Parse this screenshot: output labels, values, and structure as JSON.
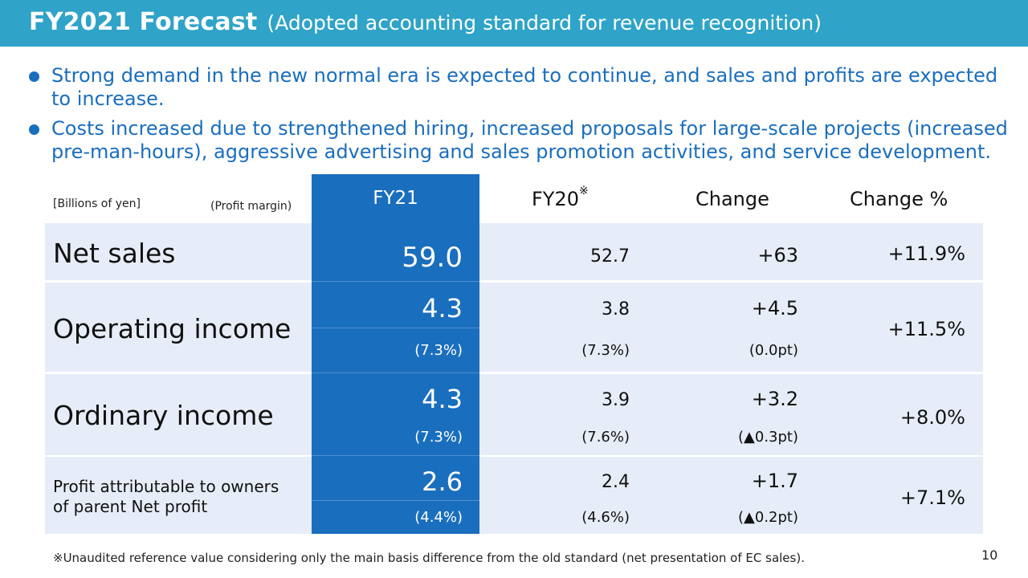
{
  "header": {
    "title": "FY2021 Forecast",
    "subtitle": "(Adopted accounting standard for revenue recognition)"
  },
  "bullets": [
    "Strong demand in the new normal era is expected to continue, and sales and profits are expected to increase.",
    "Costs increased due to strengthened hiring, increased proposals for large-scale projects (increased pre-man-hours), aggressive advertising and sales promotion activities, and service development."
  ],
  "table": {
    "unit_label": "[Billions of yen]",
    "margin_label": "(Profit margin)",
    "columns": {
      "fy21": "FY21",
      "fy20": "FY20",
      "fy20_mark": "※",
      "change": "Change",
      "change_pct": "Change %"
    },
    "rows": [
      {
        "label": "Net sales",
        "fy21": "59.0",
        "fy20": "52.7",
        "change": "+63",
        "change_pct": "+11.9%"
      },
      {
        "label": "Operating income",
        "fy21": "4.3",
        "fy21_margin": "(7.3%)",
        "fy20": "3.8",
        "fy20_margin": "(7.3%)",
        "change": "+4.5",
        "change_margin": "(0.0pt)",
        "change_pct": "+11.5%"
      },
      {
        "label": "Ordinary income",
        "fy21": "4.3",
        "fy21_margin": "(7.3%)",
        "fy20": "3.9",
        "fy20_margin": "(7.6%)",
        "change": "+3.2",
        "change_margin": "(▲0.3pt)",
        "change_pct": "+8.0%"
      },
      {
        "label_line1": "Profit attributable to owners",
        "label_line2": "of parent Net profit",
        "fy21": "2.6",
        "fy21_margin": "(4.4%)",
        "fy20": "2.4",
        "fy20_margin": "(4.6%)",
        "change": "+1.7",
        "change_margin": "(▲0.2pt)",
        "change_pct": "+7.1%"
      }
    ]
  },
  "footnote": "※Unaudited reference value considering only the main basis difference from the old standard (net presentation of EC sales).",
  "page_number": "10",
  "colors": {
    "header_bg": "#2fa3c8",
    "accent_blue": "#1a6ebe",
    "row_bg": "#e6edf8"
  }
}
